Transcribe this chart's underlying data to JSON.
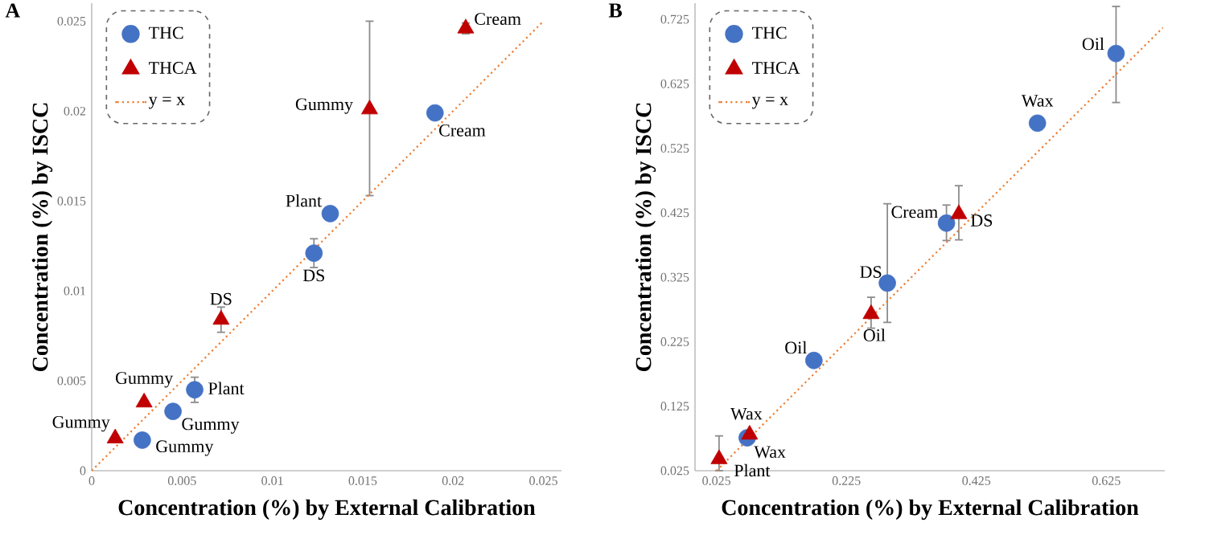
{
  "chart_data": [
    {
      "type": "scatter",
      "title": "A",
      "xlabel": "Concentration (%) by External Calibration",
      "ylabel": "Concentration (%) by ISCC",
      "xlim": [
        0,
        0.026
      ],
      "ylim": [
        0,
        0.026
      ],
      "xticks": [
        0,
        0.005,
        0.01,
        0.015,
        0.02,
        0.025
      ],
      "yticks": [
        0,
        0.005,
        0.01,
        0.015,
        0.02,
        0.025
      ],
      "legend": "top left",
      "grid": false,
      "series": [
        {
          "name": "THC",
          "color": "#4472c4",
          "marker": "circle",
          "x": [
            0.0028,
            0.0045,
            0.0057,
            0.0123,
            0.0132,
            0.019
          ],
          "values": [
            0.0017,
            0.0033,
            0.0045,
            0.0121,
            0.0143,
            0.0199
          ],
          "errors": [
            null,
            null,
            0.0007,
            0.0008,
            null,
            null
          ]
        },
        {
          "name": "THCA",
          "color": "#c00000",
          "marker": "triangle",
          "x": [
            0.0013,
            0.0029,
            0.00716,
            0.01538,
            0.0207
          ],
          "values": [
            0.0018,
            0.0038,
            0.0084,
            0.0201,
            0.0246
          ],
          "errors": [
            null,
            null,
            0.0007,
            [
              0.0153,
              0.025
            ],
            0.0003
          ]
        },
        {
          "name": "y = x",
          "type": "line",
          "color": "#ed7d31",
          "marker": "none",
          "line_style": "dotted",
          "x": [
            0,
            0.025
          ],
          "values": [
            0,
            0.025
          ]
        }
      ],
      "annotations": [
        {
          "text": "Gummy",
          "x": 0.0028,
          "y": 0.0017
        },
        {
          "text": "Gummy",
          "x": 0.0045,
          "y": 0.0033
        },
        {
          "text": "Plant",
          "x": 0.0057,
          "y": 0.0045
        },
        {
          "text": "DS",
          "x": 0.0123,
          "y": 0.0121
        },
        {
          "text": "Plant",
          "x": 0.0132,
          "y": 0.0143
        },
        {
          "text": "Cream",
          "x": 0.019,
          "y": 0.0199
        },
        {
          "text": "Gummy",
          "x": 0.0013,
          "y": 0.0018
        },
        {
          "text": "Gummy",
          "x": 0.0029,
          "y": 0.0038
        },
        {
          "text": "DS",
          "x": 0.00716,
          "y": 0.0084
        },
        {
          "text": "Gummy",
          "x": 0.01538,
          "y": 0.0201
        },
        {
          "text": "Cream",
          "x": 0.0207,
          "y": 0.0246
        }
      ]
    },
    {
      "type": "scatter",
      "title": "B",
      "xlabel": "Concentration (%) by External Calibration",
      "ylabel": "Concentration (%) by ISCC",
      "xlim": [
        -0.008,
        0.715
      ],
      "ylim": [
        0.025,
        0.75
      ],
      "xticks": [
        0.025,
        0.225,
        0.425,
        0.625
      ],
      "yticks": [
        0.025,
        0.125,
        0.225,
        0.325,
        0.425,
        0.525,
        0.625,
        0.725
      ],
      "legend": "top left",
      "grid": false,
      "series": [
        {
          "name": "THC",
          "color": "#4472c4",
          "marker": "circle",
          "x": [
            0.0723,
            0.175,
            0.288,
            0.379,
            0.519,
            0.64
          ],
          "values": [
            0.076,
            0.196,
            0.316,
            0.409,
            0.564,
            0.672
          ],
          "errors": [
            null,
            null,
            [
              0.255,
              0.439
            ],
            [
              0.382,
              0.437
            ],
            null,
            [
              0.596,
              0.745
            ]
          ]
        },
        {
          "name": "THCA",
          "color": "#c00000",
          "marker": "triangle",
          "x": [
            0.029,
            0.076,
            0.263,
            0.398
          ],
          "values": [
            0.043,
            0.081,
            0.268,
            0.423
          ],
          "errors": [
            [
              0.025,
              0.079
            ],
            null,
            [
              0.246,
              0.294
            ],
            [
              0.383,
              0.467
            ]
          ]
        },
        {
          "name": "y = x",
          "type": "line",
          "color": "#ed7d31",
          "marker": "none",
          "line_style": "dotted",
          "x": [
            0.025,
            0.712
          ],
          "values": [
            0.025,
            0.712
          ]
        }
      ],
      "annotations": [
        {
          "text": "Wax",
          "x": 0.0723,
          "y": 0.076
        },
        {
          "text": "Oil",
          "x": 0.175,
          "y": 0.196
        },
        {
          "text": "DS",
          "x": 0.288,
          "y": 0.316
        },
        {
          "text": "Cream",
          "x": 0.379,
          "y": 0.409
        },
        {
          "text": "Wax",
          "x": 0.519,
          "y": 0.564
        },
        {
          "text": "Oil",
          "x": 0.64,
          "y": 0.672
        },
        {
          "text": "Plant",
          "x": 0.029,
          "y": 0.043
        },
        {
          "text": "Wax",
          "x": 0.076,
          "y": 0.081
        },
        {
          "text": "Oil",
          "x": 0.263,
          "y": 0.268
        },
        {
          "text": "DS",
          "x": 0.398,
          "y": 0.423
        }
      ]
    }
  ]
}
